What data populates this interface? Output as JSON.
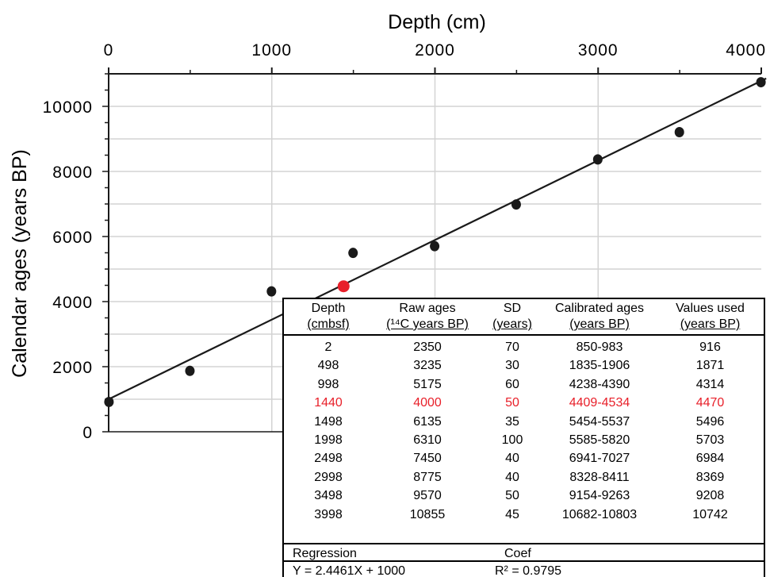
{
  "chart_data": {
    "type": "scatter",
    "xlabel": "Depth (cm)",
    "ylabel": "Calendar ages (years BP)",
    "xlim": [
      0,
      4000
    ],
    "ylim": [
      0,
      11000
    ],
    "x_ticks": [
      "0",
      "1000",
      "2000",
      "3000",
      "4000"
    ],
    "y_ticks": [
      "0",
      "2000",
      "4000",
      "6000",
      "8000",
      "10000"
    ],
    "x_axis_position": "top",
    "grid": true,
    "points": [
      {
        "x": 2,
        "y": 916
      },
      {
        "x": 498,
        "y": 1871
      },
      {
        "x": 998,
        "y": 4314
      },
      {
        "x": 1440,
        "y": 4470,
        "highlight": true
      },
      {
        "x": 1498,
        "y": 5496
      },
      {
        "x": 1998,
        "y": 5703
      },
      {
        "x": 2498,
        "y": 6984
      },
      {
        "x": 2998,
        "y": 8369
      },
      {
        "x": 3498,
        "y": 9208
      },
      {
        "x": 3998,
        "y": 10742
      }
    ],
    "regression_line": {
      "slope": 2.4461,
      "intercept": 1000
    },
    "colors": {
      "points": "#1a1a1a",
      "highlight": "#e8202a",
      "line": "#1a1a1a",
      "grid": "#d3d3d3"
    }
  },
  "table": {
    "headers": [
      {
        "line1": "Depth",
        "line2": "(cmbsf)"
      },
      {
        "line1": "Raw ages",
        "line2": "(¹⁴C years BP)"
      },
      {
        "line1": "SD",
        "line2": "(years)"
      },
      {
        "line1": "Calibrated ages",
        "line2": "(years BP)"
      },
      {
        "line1": "Values used",
        "line2": "(years BP)"
      }
    ],
    "rows": [
      [
        "2",
        "2350",
        "70",
        "850-983",
        "916"
      ],
      [
        "498",
        "3235",
        "30",
        "1835-1906",
        "1871"
      ],
      [
        "998",
        "5175",
        "60",
        "4238-4390",
        "4314"
      ],
      [
        "1440",
        "4000",
        "50",
        "4409-4534",
        "4470"
      ],
      [
        "1498",
        "6135",
        "35",
        "5454-5537",
        "5496"
      ],
      [
        "1998",
        "6310",
        "100",
        "5585-5820",
        "5703"
      ],
      [
        "2498",
        "7450",
        "40",
        "6941-7027",
        "6984"
      ],
      [
        "2998",
        "8775",
        "40",
        "8328-8411",
        "8369"
      ],
      [
        "3498",
        "9570",
        "50",
        "9154-9263",
        "9208"
      ],
      [
        "3998",
        "10855",
        "45",
        "10682-10803",
        "10742"
      ]
    ],
    "highlight_row": 3,
    "regression_label": "Regression",
    "coef_label": "Coef",
    "equation": "Y = 2.4461X + 1000",
    "r_squared": "R² = 0.9795"
  }
}
